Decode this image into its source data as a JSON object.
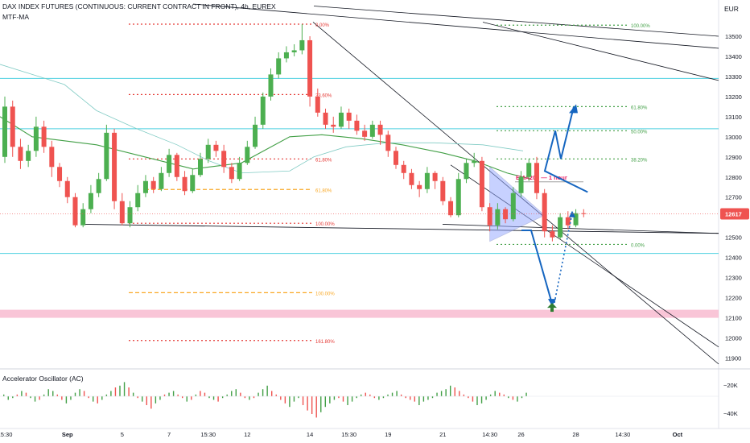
{
  "header": {
    "title": "DAX INDEX FUTURES (CONTINUOUS: CURRENT CONTRACT IN FRONT), 4h, EUREX",
    "indicator": "MTF-MA",
    "currency": "EUR"
  },
  "oscillator": {
    "label": "Accelerator Oscillator (AC)",
    "scale_labels": [
      "−20K",
      "−40K"
    ],
    "bars": [
      [
        1,
        1
      ],
      [
        -2,
        1
      ],
      [
        -1,
        1
      ],
      [
        1,
        0
      ],
      [
        3,
        1
      ],
      [
        2,
        0
      ],
      [
        -1,
        1
      ],
      [
        -3,
        1
      ],
      [
        -2,
        0
      ],
      [
        1,
        1
      ],
      [
        4,
        1
      ],
      [
        3,
        1
      ],
      [
        1,
        0
      ],
      [
        -2,
        0
      ],
      [
        -4,
        1
      ],
      [
        -2,
        1
      ],
      [
        2,
        1
      ],
      [
        4,
        1
      ],
      [
        3,
        0
      ],
      [
        -1,
        0
      ],
      [
        -3,
        1
      ],
      [
        -4,
        0
      ],
      [
        -2,
        1
      ],
      [
        1,
        1
      ],
      [
        3,
        1
      ],
      [
        5,
        0
      ],
      [
        6,
        1
      ],
      [
        8,
        1
      ],
      [
        5,
        0
      ],
      [
        2,
        1
      ],
      [
        -1,
        0
      ],
      [
        -3,
        1
      ],
      [
        -5,
        0
      ],
      [
        -7,
        0
      ],
      [
        -4,
        1
      ],
      [
        -2,
        1
      ],
      [
        1,
        0
      ],
      [
        2,
        1
      ],
      [
        3,
        1
      ],
      [
        1,
        0
      ],
      [
        -1,
        0
      ],
      [
        -3,
        1
      ],
      [
        -2,
        0
      ],
      [
        1,
        1
      ],
      [
        3,
        0
      ],
      [
        2,
        0
      ],
      [
        -1,
        1
      ],
      [
        -2,
        1
      ],
      [
        -3,
        0
      ],
      [
        -1,
        1
      ],
      [
        1,
        1
      ],
      [
        3,
        1
      ],
      [
        4,
        1
      ],
      [
        2,
        0
      ],
      [
        -1,
        0
      ],
      [
        -2,
        1
      ],
      [
        -1,
        0
      ],
      [
        2,
        1
      ],
      [
        4,
        1
      ],
      [
        6,
        1
      ],
      [
        3,
        0
      ],
      [
        1,
        0
      ],
      [
        -2,
        0
      ],
      [
        -4,
        0
      ],
      [
        -6,
        1
      ],
      [
        -3,
        1
      ],
      [
        -1,
        1
      ],
      [
        -5,
        0
      ],
      [
        -8,
        0
      ],
      [
        -10,
        0
      ],
      [
        -12,
        0
      ],
      [
        -9,
        1
      ],
      [
        -6,
        1
      ],
      [
        -4,
        1
      ],
      [
        -2,
        1
      ],
      [
        -1,
        0
      ],
      [
        -3,
        0
      ],
      [
        -5,
        1
      ],
      [
        -3,
        1
      ],
      [
        -1,
        1
      ],
      [
        1,
        1
      ],
      [
        2,
        0
      ],
      [
        1,
        0
      ],
      [
        -1,
        0
      ],
      [
        -2,
        1
      ],
      [
        -1,
        1
      ],
      [
        1,
        1
      ],
      [
        2,
        1
      ],
      [
        3,
        1
      ],
      [
        1,
        0
      ],
      [
        -1,
        0
      ],
      [
        -2,
        0
      ],
      [
        -3,
        0
      ],
      [
        -5,
        1
      ],
      [
        -3,
        1
      ],
      [
        -2,
        1
      ],
      [
        -1,
        1
      ],
      [
        2,
        1
      ],
      [
        3,
        1
      ],
      [
        4,
        1
      ],
      [
        6,
        1
      ],
      [
        5,
        0
      ],
      [
        3,
        0
      ],
      [
        1,
        0
      ],
      [
        -1,
        0
      ],
      [
        -3,
        0
      ],
      [
        -5,
        1
      ],
      [
        -4,
        1
      ],
      [
        -2,
        1
      ],
      [
        1,
        1
      ],
      [
        3,
        1
      ],
      [
        2,
        0
      ],
      [
        1,
        0
      ],
      [
        -1,
        1
      ],
      [
        -2,
        0
      ],
      [
        -3,
        1
      ],
      [
        -1,
        1
      ],
      [
        2,
        1
      ]
    ]
  },
  "chart_data": {
    "type": "candlestick",
    "title": "DAX INDEX FUTURES (CONTINUOUS: CURRENT CONTRACT IN FRONT), 4h, EUREX",
    "timeframe": "4h",
    "ylim": [
      11870,
      13600
    ],
    "y_ticks": [
      11900,
      12000,
      12100,
      12200,
      12300,
      12400,
      12500,
      12600,
      12700,
      12800,
      12900,
      13000,
      13100,
      13200,
      13300,
      13400,
      13500
    ],
    "x_ticks": [
      {
        "label": "15:30",
        "i": 0
      },
      {
        "label": "Sep",
        "i": 8
      },
      {
        "label": "5",
        "i": 15
      },
      {
        "label": "7",
        "i": 21
      },
      {
        "label": "15:30",
        "i": 26
      },
      {
        "label": "12",
        "i": 31
      },
      {
        "label": "14",
        "i": 39
      },
      {
        "label": "15:30",
        "i": 44
      },
      {
        "label": "19",
        "i": 49
      },
      {
        "label": "21",
        "i": 56
      },
      {
        "label": "14:30",
        "i": 62
      },
      {
        "label": "26",
        "i": 66
      },
      {
        "label": "28",
        "i": 73
      },
      {
        "label": "14:30",
        "i": 79
      },
      {
        "label": "Oct",
        "i": 86
      }
    ],
    "last_price": {
      "label": "12617",
      "value": 12617
    },
    "candles": [
      [
        12900,
        13150,
        12870,
        13200
      ],
      [
        13150,
        12950,
        12900,
        13180
      ],
      [
        12950,
        12880,
        12840,
        12990
      ],
      [
        12880,
        12930,
        12850,
        12960
      ],
      [
        12930,
        13050,
        12900,
        13100
      ],
      [
        13050,
        12950,
        12920,
        13080
      ],
      [
        12950,
        12850,
        12800,
        12980
      ],
      [
        12850,
        12780,
        12750,
        12870
      ],
      [
        12780,
        12700,
        12670,
        12800
      ],
      [
        12700,
        12560,
        12550,
        12720
      ],
      [
        12560,
        12640,
        12550,
        12670
      ],
      [
        12640,
        12720,
        12620,
        12760
      ],
      [
        12720,
        12790,
        12700,
        12820
      ],
      [
        12790,
        13020,
        12780,
        13060
      ],
      [
        13020,
        12680,
        12640,
        13040
      ],
      [
        12680,
        12570,
        12560,
        12720
      ],
      [
        12570,
        12650,
        12550,
        12680
      ],
      [
        12650,
        12720,
        12630,
        12760
      ],
      [
        12720,
        12780,
        12700,
        12810
      ],
      [
        12780,
        12740,
        12720,
        12800
      ],
      [
        12740,
        12820,
        12730,
        12850
      ],
      [
        12820,
        12910,
        12800,
        12940
      ],
      [
        12910,
        12800,
        12780,
        12920
      ],
      [
        12800,
        12730,
        12710,
        12830
      ],
      [
        12730,
        12810,
        12720,
        12840
      ],
      [
        12810,
        12890,
        12800,
        12920
      ],
      [
        12890,
        12960,
        12870,
        12990
      ],
      [
        12960,
        12930,
        12900,
        12980
      ],
      [
        12930,
        12850,
        12820,
        12960
      ],
      [
        12850,
        12790,
        12770,
        12870
      ],
      [
        12790,
        12870,
        12780,
        12900
      ],
      [
        12870,
        12950,
        12860,
        12980
      ],
      [
        12950,
        13060,
        12940,
        13100
      ],
      [
        13060,
        13200,
        13040,
        13220
      ],
      [
        13200,
        13310,
        13180,
        13340
      ],
      [
        13310,
        13390,
        13290,
        13420
      ],
      [
        13390,
        13420,
        13370,
        13450
      ],
      [
        13420,
        13430,
        13400,
        13460
      ],
      [
        13430,
        13480,
        13410,
        13560
      ],
      [
        13480,
        13200,
        13150,
        13500
      ],
      [
        13200,
        13120,
        13100,
        13240
      ],
      [
        13120,
        13060,
        13040,
        13140
      ],
      [
        13060,
        13050,
        13020,
        13100
      ],
      [
        13050,
        13120,
        13040,
        13150
      ],
      [
        13120,
        13080,
        13040,
        13140
      ],
      [
        13080,
        13030,
        13010,
        13110
      ],
      [
        13030,
        13000,
        12980,
        13060
      ],
      [
        13000,
        13060,
        12990,
        13080
      ],
      [
        13060,
        13010,
        12960,
        13080
      ],
      [
        13010,
        12930,
        12900,
        13030
      ],
      [
        12930,
        12860,
        12840,
        12950
      ],
      [
        12860,
        12820,
        12790,
        12880
      ],
      [
        12820,
        12760,
        12740,
        12840
      ],
      [
        12760,
        12740,
        12700,
        12780
      ],
      [
        12740,
        12820,
        12720,
        12850
      ],
      [
        12820,
        12780,
        12740,
        12830
      ],
      [
        12780,
        12680,
        12660,
        12800
      ],
      [
        12680,
        12610,
        12600,
        12700
      ],
      [
        12610,
        12790,
        12600,
        12820
      ],
      [
        12790,
        12870,
        12770,
        12890
      ],
      [
        12870,
        12880,
        12850,
        12920
      ],
      [
        12880,
        12650,
        12630,
        12900
      ],
      [
        12650,
        12560,
        12530,
        12670
      ],
      [
        12560,
        12640,
        12540,
        12670
      ],
      [
        12640,
        12590,
        12570,
        12650
      ],
      [
        12590,
        12720,
        12580,
        12750
      ],
      [
        12720,
        12800,
        12700,
        12830
      ],
      [
        12800,
        12870,
        12780,
        12890
      ],
      [
        12870,
        12720,
        12690,
        12900
      ],
      [
        12720,
        12530,
        12500,
        12740
      ],
      [
        12530,
        12500,
        12480,
        12560
      ],
      [
        12500,
        12600,
        12490,
        12620
      ],
      [
        12600,
        12560,
        12540,
        12630
      ],
      [
        12560,
        12620,
        12550,
        12640
      ],
      [
        12620,
        12617,
        12600,
        12640
      ]
    ],
    "fib_levels": [
      {
        "label": "0.00%",
        "price": 13560,
        "color": "#e53935"
      },
      {
        "label": "23.60%",
        "price": 13210,
        "color": "#e53935"
      },
      {
        "label": "61.80%",
        "price": 12890,
        "color": "#e53935"
      },
      {
        "label": "61.80%",
        "price": 12738,
        "color": "#f9a825"
      },
      {
        "label": "100.00%",
        "price": 12570,
        "color": "#e53935"
      },
      {
        "label": "100.00%",
        "price": 12225,
        "color": "#f9a825"
      },
      {
        "label": "161.80%",
        "price": 11987,
        "color": "#e53935"
      },
      {
        "label": "100.00%",
        "price": 13555,
        "color": "#43a047"
      },
      {
        "label": "61.80%",
        "price": 13150,
        "color": "#43a047"
      },
      {
        "label": "50.00%",
        "price": 13030,
        "color": "#43a047"
      },
      {
        "label": "38.20%",
        "price": 12890,
        "color": "#43a047"
      },
      {
        "label": "0.00%",
        "price": 12465,
        "color": "#43a047"
      }
    ],
    "horizontal_levels": [
      13290,
      13040,
      12420
    ],
    "support_zone": [
      12100,
      12140
    ],
    "annotation": {
      "label": "EMA200 — 1 hour",
      "price": 12800
    }
  }
}
